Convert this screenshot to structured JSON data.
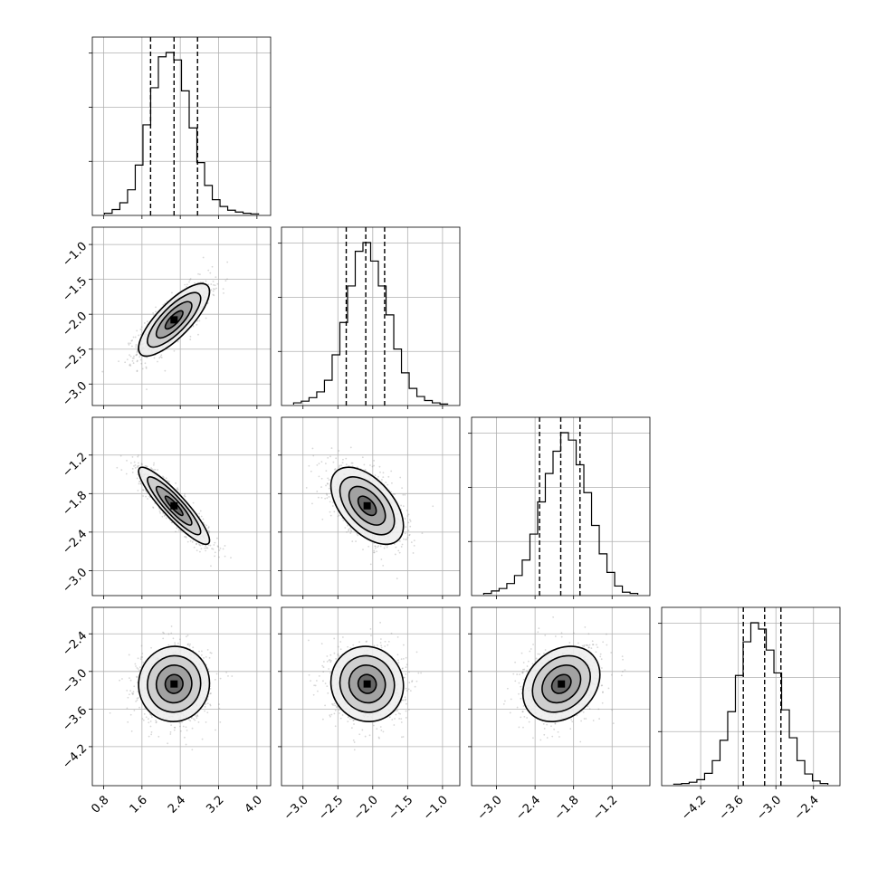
{
  "chart_data": {
    "type": "corner",
    "grid": true,
    "quantile_lines": "dashed",
    "histogram_color": "#000000",
    "sample_color": "#8c8c8c",
    "params": [
      {
        "range": [
          0.75,
          4.1
        ],
        "ticks": [
          "0.8",
          "1.6",
          "2.4",
          "3.2",
          "4.0"
        ],
        "quantiles": [
          1.78,
          2.27,
          2.76
        ],
        "mean": 2.27,
        "sd": 0.37
      },
      {
        "range": [
          -3.18,
          -0.88
        ],
        "ticks": [
          "−3.0",
          "−2.5",
          "−2.0",
          "−1.5",
          "−1.0"
        ],
        "quantiles": [
          -2.38,
          -2.1,
          -1.83
        ],
        "mean": -2.08,
        "sd": 0.26
      },
      {
        "range": [
          -3.25,
          -0.75
        ],
        "ticks": [
          "−3.0",
          "−2.4",
          "−1.8",
          "−1.2"
        ],
        "quantiles": [
          -2.33,
          -2.0,
          -1.7
        ],
        "mean": -1.99,
        "sd": 0.3
      },
      {
        "range": [
          -4.68,
          -2.12
        ],
        "ticks": [
          "−4.2",
          "−3.6",
          "−3.0",
          "−2.4"
        ],
        "quantiles": [
          -3.52,
          -3.18,
          -2.92
        ],
        "mean": -3.2,
        "sd": 0.3
      }
    ],
    "histograms": [
      [
        2,
        8,
        19,
        40,
        80,
        145,
        205,
        255,
        262,
        250,
        200,
        140,
        84,
        47,
        24,
        13,
        7,
        4,
        2,
        1
      ],
      [
        3,
        6,
        12,
        22,
        42,
        86,
        142,
        205,
        265,
        280,
        248,
        205,
        155,
        96,
        55,
        28,
        14,
        7,
        3,
        1
      ],
      [
        2,
        6,
        10,
        18,
        31,
        56,
        98,
        150,
        196,
        232,
        262,
        250,
        210,
        165,
        112,
        66,
        36,
        14,
        4,
        2
      ],
      [
        1,
        2,
        4,
        8,
        18,
        38,
        70,
        115,
        172,
        225,
        255,
        245,
        212,
        176,
        118,
        74,
        38,
        17,
        6,
        2
      ]
    ],
    "correlations": [
      [
        1,
        0.78,
        -0.9,
        0.02
      ],
      [
        0.78,
        1,
        -0.52,
        -0.05
      ],
      [
        -0.9,
        -0.52,
        1,
        0.25
      ],
      [
        0.02,
        -0.05,
        0.25,
        1
      ]
    ]
  }
}
